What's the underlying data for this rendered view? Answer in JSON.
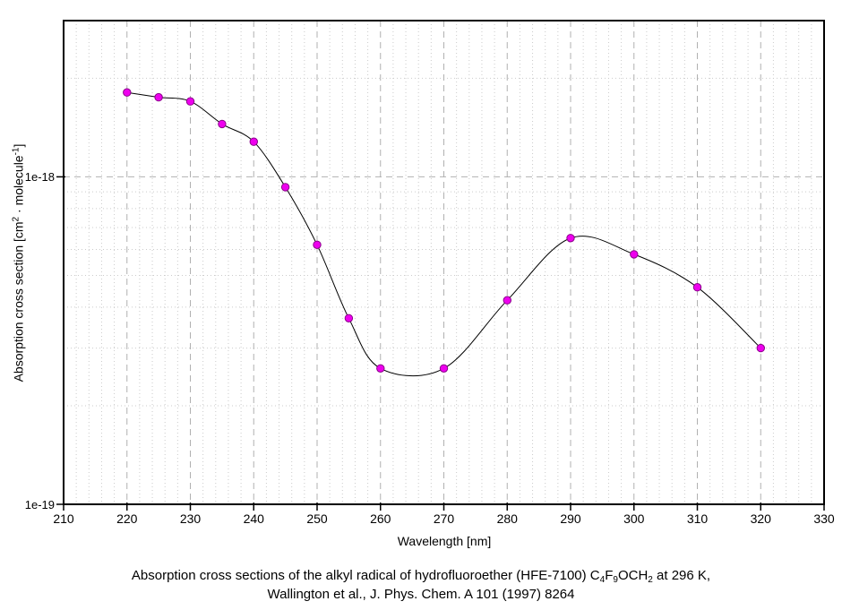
{
  "page": {
    "background": "#ffffff"
  },
  "caption": {
    "line1_parts": [
      {
        "t": "Absorption cross sections of the alkyl radical of hydrofluoroether (HFE-7100) C"
      },
      {
        "t": "4",
        "s": "sub"
      },
      {
        "t": "F"
      },
      {
        "t": "9",
        "s": "sub"
      },
      {
        "t": "OCH"
      },
      {
        "t": "2",
        "s": "sub"
      },
      {
        "t": " at 296 K,"
      }
    ],
    "line1_text": "Absorption cross sections of the alkyl radical of hydrofluoroether (HFE-7100) C4F9OCH2 at 296 K,",
    "line2": "Wallington et al., J. Phys. Chem. A 101 (1997) 8264"
  },
  "chart_data": {
    "type": "line",
    "title": "",
    "xlabel": "Wavelength [nm]",
    "ylabel_text": "Absorption cross section [cm2 · molecule-1]",
    "ylabel_parts": [
      {
        "t": "Absorption cross section [cm"
      },
      {
        "t": "2",
        "s": "sup"
      },
      {
        "t": " · molecule"
      },
      {
        "t": "-1",
        "s": "sup"
      },
      {
        "t": "]"
      }
    ],
    "x": [
      220,
      225,
      230,
      235,
      240,
      245,
      250,
      255,
      260,
      270,
      280,
      290,
      300,
      310,
      320
    ],
    "y": [
      1.81e-18,
      1.75e-18,
      1.7e-18,
      1.45e-18,
      1.28e-18,
      9.3e-19,
      6.2e-19,
      3.7e-19,
      2.6e-19,
      2.6e-19,
      4.2e-19,
      6.5e-19,
      5.8e-19,
      4.6e-19,
      3e-19
    ],
    "xlim": [
      210,
      330
    ],
    "ylim": [
      1e-19,
      3e-18
    ],
    "y_scale": "log",
    "x_ticks": [
      210,
      220,
      230,
      240,
      250,
      260,
      270,
      280,
      290,
      300,
      310,
      320,
      330
    ],
    "x_tick_step": 10,
    "x_minor_step": 2,
    "y_ticks": [
      {
        "value": 1e-19,
        "label": "1e-19"
      },
      {
        "value": 1e-18,
        "label": "1e-18"
      }
    ],
    "grid": {
      "major": "dashed",
      "minor": "dotted"
    },
    "legend": "none",
    "marker": "filled-circle",
    "colors": {
      "marker_fill": "#ee00ee",
      "marker_edge": "#880088",
      "line": "#000000",
      "grid_major": "#b0b0b0",
      "grid_minor": "#cbcbcb",
      "axis": "#000000",
      "text": "#000000",
      "background": "#ffffff"
    }
  }
}
